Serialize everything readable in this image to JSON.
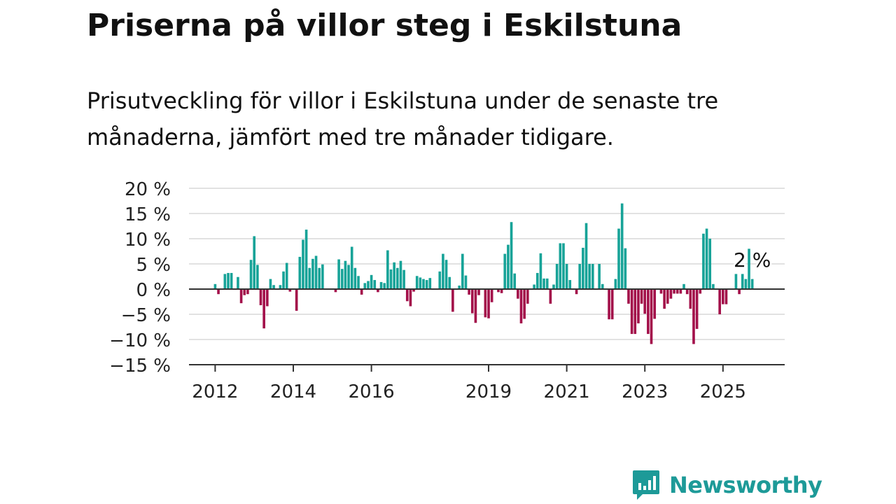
{
  "title": "Priserna på villor steg i Eskilstuna",
  "subtitle": "Prisutveckling för villor i Eskilstuna under de senaste tre månaderna, jämfört med tre månader tidigare.",
  "brand": {
    "name": "Newsworthy",
    "color": "#1d9a98",
    "icon": "newsworthy-logo-icon"
  },
  "colors": {
    "positive": "#17a398",
    "negative": "#a3104a",
    "grid": "#d9d9d9",
    "axis": "#333333"
  },
  "chart_data": {
    "type": "bar",
    "ylim": [
      -15,
      20
    ],
    "yticks": [
      20,
      15,
      10,
      5,
      0,
      -5,
      -10,
      -15
    ],
    "ytick_labels": [
      "20 %",
      "15 %",
      "10 %",
      "5 %",
      "0 %",
      "−5 %",
      "−10 %",
      "−15 %"
    ],
    "x_range": [
      2011.33,
      2026.58
    ],
    "xticks": [
      2012,
      2014,
      2016,
      2019,
      2021,
      2023,
      2025
    ],
    "xtick_labels": [
      "2012",
      "2014",
      "2016",
      "2019",
      "2021",
      "2023",
      "2025"
    ],
    "start": "2012-01",
    "values": [
      1,
      -1,
      0,
      3,
      3.2,
      3.2,
      0,
      2.4,
      -2.8,
      -1.2,
      -1,
      5.8,
      10.5,
      4.8,
      -3.2,
      -7.8,
      -3.4,
      2,
      0.8,
      0,
      0.8,
      3.5,
      5.2,
      -0.5,
      0,
      -4.3,
      6.4,
      9.8,
      11.8,
      4.2,
      6,
      6.6,
      4.2,
      4.9,
      0,
      0,
      0,
      -0.6,
      5.9,
      4,
      5.6,
      4.8,
      8.4,
      4.2,
      2.6,
      -1.1,
      1.2,
      1.6,
      2.8,
      1.8,
      -0.6,
      1.4,
      1.2,
      7.7,
      3.9,
      5.3,
      4.2,
      5.6,
      3.8,
      -2.4,
      -3.4,
      -0.5,
      2.6,
      2.3,
      2,
      1.8,
      2.2,
      0,
      0,
      3.5,
      7,
      5.8,
      2.4,
      -4.5,
      0,
      0.7,
      7,
      2.7,
      -1.1,
      -4.8,
      -6.7,
      -1.2,
      0,
      -5.6,
      -5.8,
      -2.6,
      0,
      -0.6,
      -0.8,
      7,
      8.8,
      13.3,
      3.1,
      -1.9,
      -6.8,
      -5.9,
      -2.9,
      0,
      0.9,
      3.2,
      7.1,
      2.1,
      2.1,
      -2.9,
      0.9,
      5,
      9.1,
      9.1,
      5,
      1.8,
      0,
      -1,
      5,
      8.2,
      13.1,
      5,
      5,
      0,
      5,
      1,
      0,
      -6,
      -6,
      2,
      12,
      17,
      8.1,
      -2.9,
      -8.9,
      -8.9,
      -6.8,
      -2.9,
      -4.9,
      -8.9,
      -10.9,
      -5.9,
      0,
      -0.9,
      -3.9,
      -2.9,
      -1.9,
      -0.9,
      -0.9,
      -0.9,
      1,
      -1,
      -3.9,
      -10.9,
      -7.9,
      -0.9,
      11,
      12,
      10,
      1,
      0,
      -5,
      -3,
      -3,
      0,
      0,
      3,
      -1,
      3,
      2,
      8,
      2
    ],
    "last_label": "2 %"
  }
}
